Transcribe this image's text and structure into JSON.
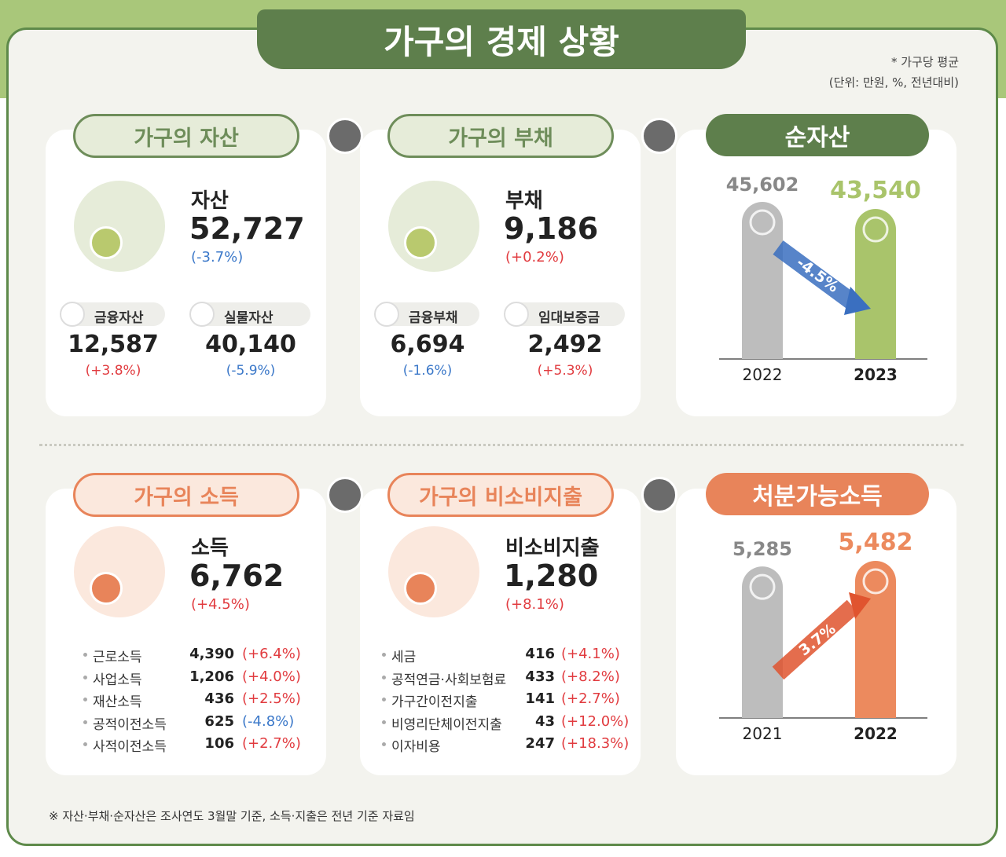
{
  "header": {
    "title": "가구의 경제 상황",
    "note": "* 가구당 평균",
    "unit": "(단위: 만원, %, 전년대비)"
  },
  "rows": [
    {
      "panels": [
        {
          "title": "가구의 자산",
          "main": {
            "label": "자산",
            "value": "52,727",
            "change": "(-3.7%)"
          },
          "items": [
            {
              "label": "금융자산",
              "value": "12,587",
              "change": "(+3.8%)"
            },
            {
              "label": "실물자산",
              "value": "40,140",
              "change": "(-5.9%)"
            }
          ]
        },
        {
          "title": "가구의 부채",
          "main": {
            "label": "부채",
            "value": "9,186",
            "change": "(+0.2%)"
          },
          "items": [
            {
              "label": "금융부채",
              "value": "6,694",
              "change": "(-1.6%)"
            },
            {
              "label": "임대보증금",
              "value": "2,492",
              "change": "(+5.3%)"
            }
          ]
        },
        {
          "title": "순자산",
          "chart": {
            "type": "bar",
            "categories": [
              "2022",
              "2023"
            ],
            "values": [
              45602,
              43540
            ],
            "value_labels": [
              "45,602",
              "43,540"
            ],
            "colors": [
              "#bdbdbd",
              "#a9c46b"
            ],
            "change": "-4.5%"
          }
        }
      ]
    },
    {
      "panels": [
        {
          "title": "가구의 소득",
          "main": {
            "label": "소득",
            "value": "6,762",
            "change": "(+4.5%)"
          },
          "items": [
            {
              "label": "근로소득",
              "value": "4,390",
              "change": "(+6.4%)"
            },
            {
              "label": "사업소득",
              "value": "1,206",
              "change": "(+4.0%)"
            },
            {
              "label": "재산소득",
              "value": "436",
              "change": "(+2.5%)"
            },
            {
              "label": "공적이전소득",
              "value": "625",
              "change": "(-4.8%)"
            },
            {
              "label": "사적이전소득",
              "value": "106",
              "change": "(+2.7%)"
            }
          ]
        },
        {
          "title": "가구의 비소비지출",
          "main": {
            "label": "비소비지출",
            "value": "1,280",
            "change": "(+8.1%)"
          },
          "items": [
            {
              "label": "세금",
              "value": "416",
              "change": "(+4.1%)"
            },
            {
              "label": "공적연금·사회보험료",
              "value": "433",
              "change": "(+8.2%)"
            },
            {
              "label": "가구간이전지출",
              "value": "141",
              "change": "(+2.7%)"
            },
            {
              "label": "비영리단체이전지출",
              "value": "43",
              "change": "(+12.0%)"
            },
            {
              "label": "이자비용",
              "value": "247",
              "change": "(+18.3%)"
            }
          ]
        },
        {
          "title": "처분가능소득",
          "chart": {
            "type": "bar",
            "categories": [
              "2021",
              "2022"
            ],
            "values": [
              5285,
              5482
            ],
            "value_labels": [
              "5,285",
              "5,482"
            ],
            "colors": [
              "#bdbdbd",
              "#ec8a5e"
            ],
            "change": "3.7%"
          }
        }
      ]
    }
  ],
  "footnote": "※ 자산·부채·순자산은 조사연도 3월말 기준, 소득·지출은 전년 기준 자료임"
}
